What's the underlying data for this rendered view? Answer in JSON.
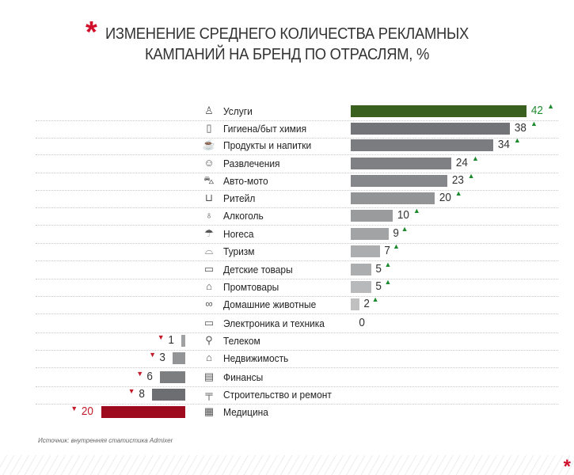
{
  "title_line1": "ИЗМЕНЕНИЕ СРЕДНЕГО КОЛИЧЕСТВА РЕКЛАМНЫХ",
  "title_line2": "КАМПАНИЙ НА БРЕНД ПО ОТРАСЛЯМ, %",
  "source": "Источник: внутренняя статистика Admixer",
  "colors": {
    "up": "#1e8a2e",
    "down": "#c41a2a",
    "highlight_pos": "#3a6020",
    "highlight_neg": "#9e0b1e"
  },
  "chart_data": {
    "type": "bar",
    "title": "ИЗМЕНЕНИЕ СРЕДНЕГО КОЛИЧЕСТВА РЕКЛАМНЫХ КАМПАНИЙ НА БРЕНД ПО ОТРАСЛЯМ, %",
    "categories": [
      "Услуги",
      "Гигиена/быт химия",
      "Продукты и напитки",
      "Развлечения",
      "Авто-мото",
      "Ритейл",
      "Алкоголь",
      "Horeca",
      "Туризм",
      "Детские товары",
      "Промтовары",
      "Домашние животные",
      "Электроника и техника",
      "Телеком",
      "Недвижимость",
      "Финансы",
      "Строительство и ремонт",
      "Медицина"
    ],
    "values": [
      42,
      38,
      34,
      24,
      23,
      20,
      10,
      9,
      7,
      5,
      5,
      2,
      0,
      -1,
      -3,
      -6,
      -8,
      -20
    ],
    "display": [
      "42",
      "38",
      "34",
      "24",
      "23",
      "20",
      "10",
      "9",
      "7",
      "5",
      "5",
      "2",
      "0",
      "1",
      "3",
      "6",
      "8",
      "20"
    ],
    "icons": [
      "person-icon",
      "bottle-icon",
      "food-icon",
      "theater-masks-icon",
      "car-icon",
      "cart-icon",
      "wine-glass-icon",
      "beach-umbrella-icon",
      "tour-dome-icon",
      "toy-icon",
      "basket-icon",
      "bone-icon",
      "laptop-icon",
      "satellite-dish-icon",
      "house-icon",
      "wallet-icon",
      "crane-icon",
      "medical-grid-icon"
    ]
  }
}
